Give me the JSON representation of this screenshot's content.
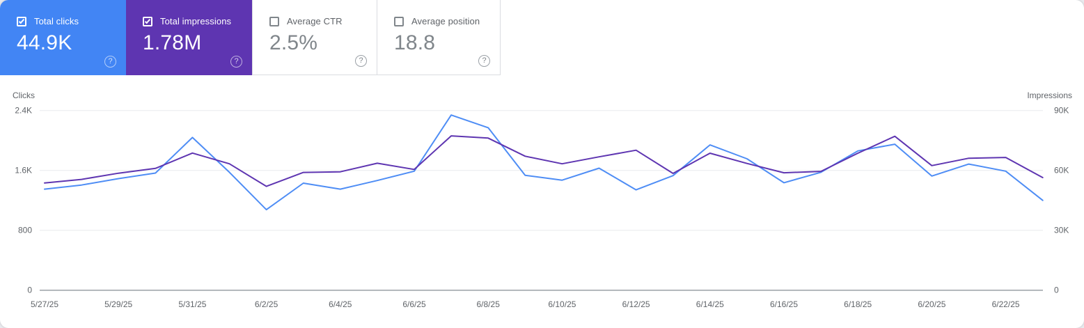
{
  "cards": [
    {
      "id": "total-clicks",
      "label": "Total clicks",
      "value": "44.9K",
      "checked": true,
      "bg": "#4285f4",
      "selected": true
    },
    {
      "id": "total-impressions",
      "label": "Total impressions",
      "value": "1.78M",
      "checked": true,
      "bg": "#5e35b1",
      "selected": true
    },
    {
      "id": "average-ctr",
      "label": "Average CTR",
      "value": "2.5%",
      "checked": false,
      "bg": "#ffffff",
      "selected": false
    },
    {
      "id": "average-position",
      "label": "Average position",
      "value": "18.8",
      "checked": false,
      "bg": "#ffffff",
      "selected": false
    }
  ],
  "icons": {
    "help": "?"
  },
  "chart_data": {
    "type": "line",
    "x": [
      "5/27/25",
      "5/28/25",
      "5/29/25",
      "5/30/25",
      "5/31/25",
      "6/1/25",
      "6/2/25",
      "6/3/25",
      "6/4/25",
      "6/5/25",
      "6/6/25",
      "6/7/25",
      "6/8/25",
      "6/9/25",
      "6/10/25",
      "6/11/25",
      "6/12/25",
      "6/13/25",
      "6/14/25",
      "6/15/25",
      "6/16/25",
      "6/17/25",
      "6/18/25",
      "6/19/25",
      "6/20/25",
      "6/21/25",
      "6/22/25",
      "6/23/25"
    ],
    "x_tick_labels": [
      "5/27/25",
      "5/29/25",
      "5/31/25",
      "6/2/25",
      "6/4/25",
      "6/6/25",
      "6/8/25",
      "6/10/25",
      "6/12/25",
      "6/14/25",
      "6/16/25",
      "6/18/25",
      "6/20/25",
      "6/22/25"
    ],
    "series": [
      {
        "name": "Clicks",
        "axis": "left",
        "color": "#4e8df5",
        "values": [
          1350,
          1405,
          1490,
          1565,
          2040,
          1575,
          1075,
          1430,
          1350,
          1465,
          1590,
          2340,
          2170,
          1535,
          1470,
          1630,
          1340,
          1530,
          1940,
          1755,
          1435,
          1575,
          1860,
          1950,
          1525,
          1685,
          1590,
          1200
        ]
      },
      {
        "name": "Impressions",
        "axis": "right",
        "color": "#5e35b1",
        "values": [
          53700,
          55500,
          58600,
          61000,
          68700,
          63300,
          52000,
          59000,
          59300,
          63600,
          60500,
          77300,
          76200,
          67100,
          63300,
          66800,
          70100,
          58500,
          68600,
          63500,
          58800,
          59500,
          68600,
          77100,
          62400,
          66100,
          66500,
          56400
        ]
      }
    ],
    "left_axis": {
      "title": "Clicks",
      "max": 2400,
      "ticks": [
        {
          "label": "2.4K",
          "value": 2400
        },
        {
          "label": "1.6K",
          "value": 1600
        },
        {
          "label": "800",
          "value": 800
        },
        {
          "label": "0",
          "value": 0
        }
      ]
    },
    "right_axis": {
      "title": "Impressions",
      "max": 90000,
      "ticks": [
        {
          "label": "90K",
          "value": 90000
        },
        {
          "label": "60K",
          "value": 60000
        },
        {
          "label": "30K",
          "value": 30000
        },
        {
          "label": "0",
          "value": 0
        }
      ]
    },
    "grid": true,
    "legend": "none"
  },
  "colors": {
    "gridline": "#e8eaed",
    "axis_baseline": "#9aa0a6",
    "tick_text": "#5f6368",
    "card_border": "#dadce0"
  }
}
